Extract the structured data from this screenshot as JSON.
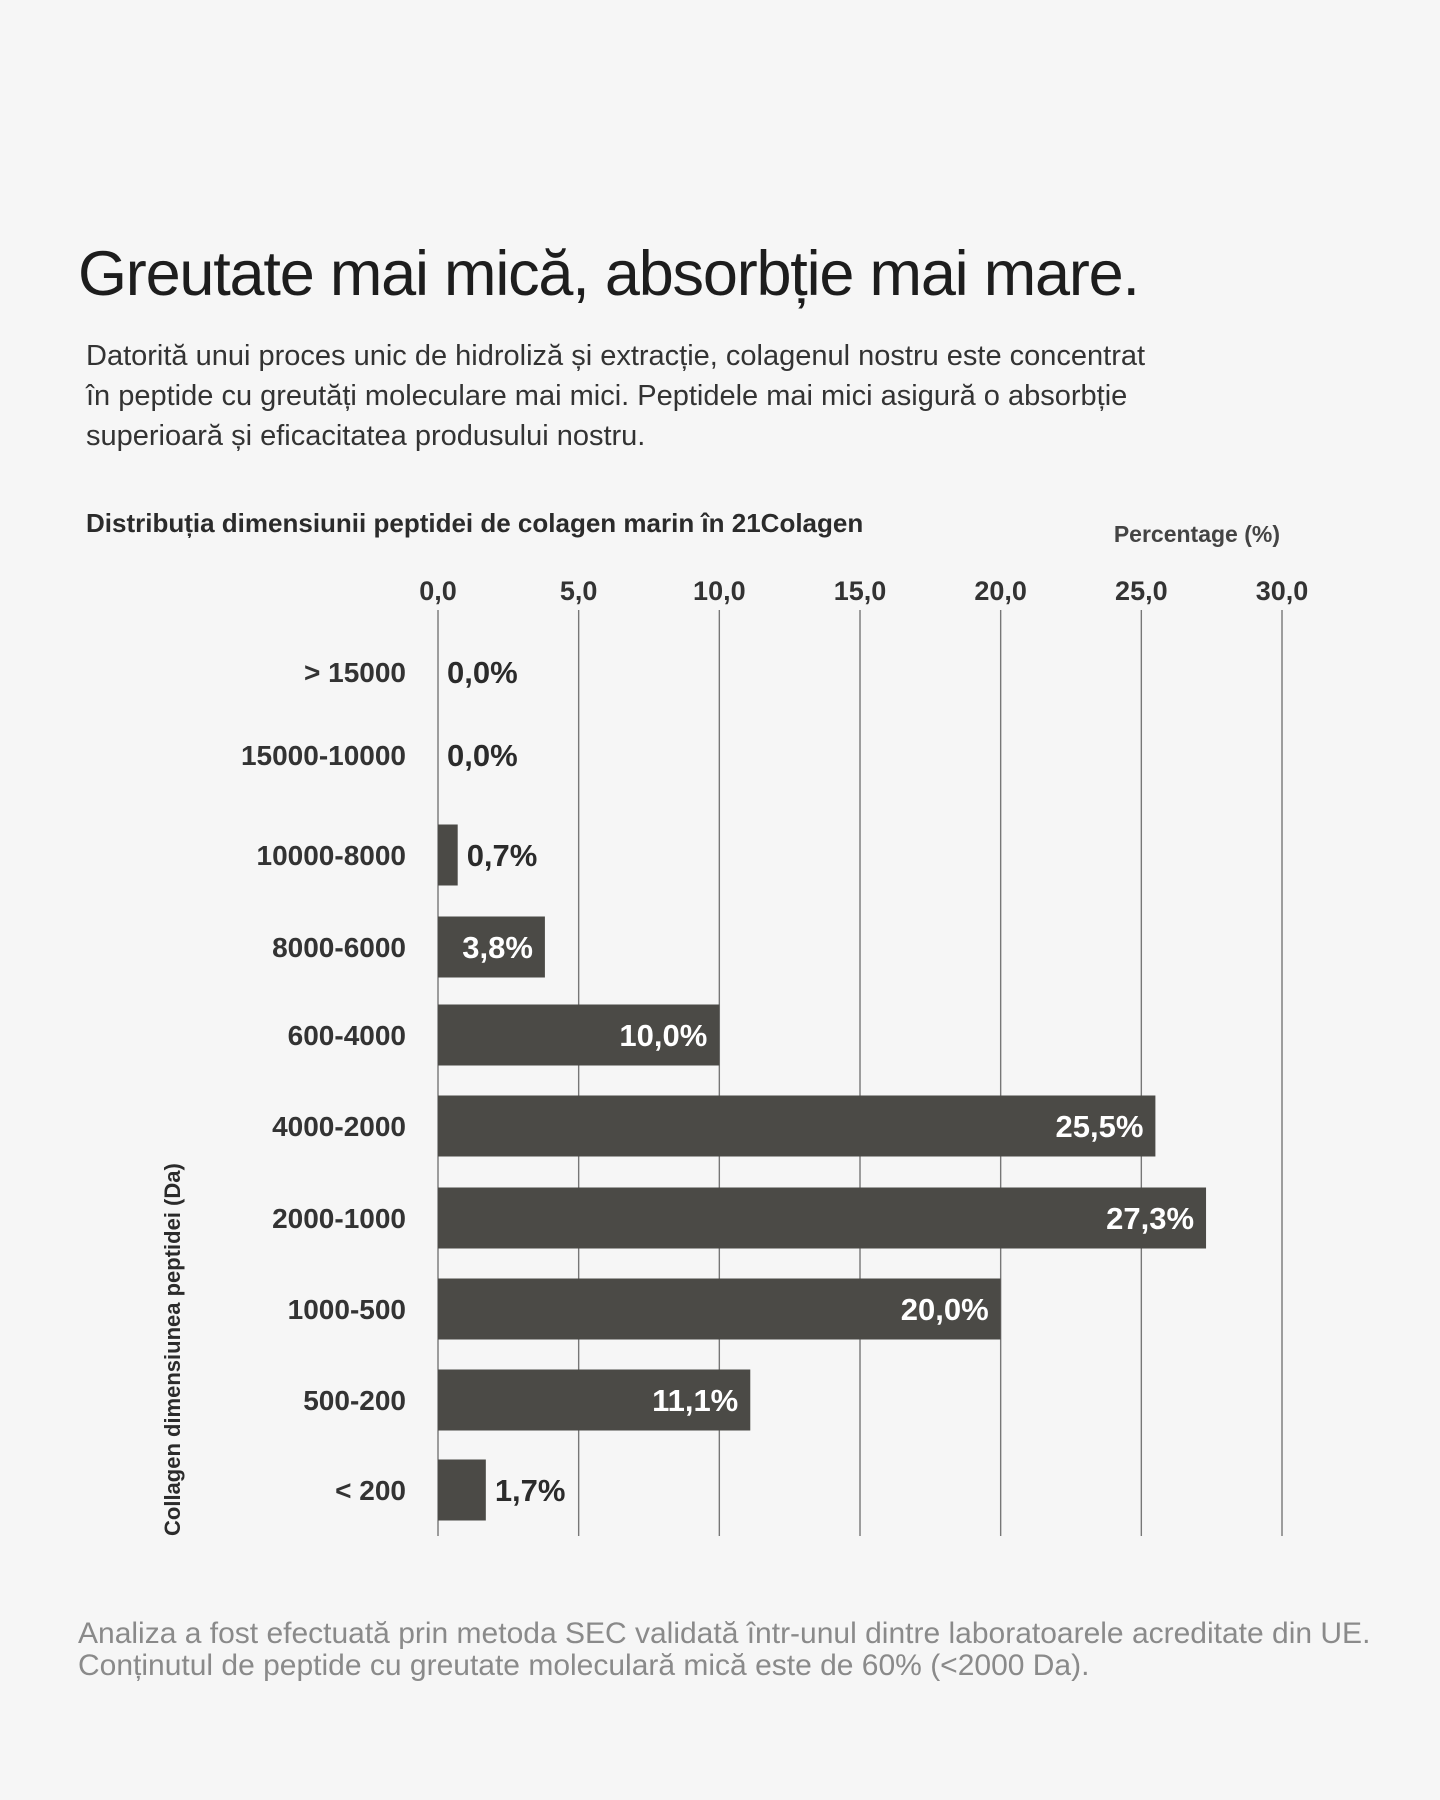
{
  "header": {
    "title": "Greutate mai mică, absorbție mai mare.",
    "description": "Datorită unui proces unic de hidroliză și extracție, colagenul nostru este concentrat în peptide cu greutăți moleculare mai mici. Peptidele mai mici asigură o absorbție superioară și eficacitatea produsului nostru."
  },
  "chart_data": {
    "type": "bar",
    "orientation": "horizontal",
    "title": "Distribuția dimensiunii peptidei de colagen marin în 21Colagen",
    "xlabel": "Percentage (%)",
    "ylabel": "Collagen dimensiunea peptidei (Da)",
    "xlim": [
      0,
      30
    ],
    "xticks": [
      "0,0",
      "5,0",
      "10,0",
      "15,0",
      "20,0",
      "25,0",
      "30,0"
    ],
    "grid": true,
    "categories": [
      "> 15000",
      "15000-10000",
      "10000-8000",
      "8000-6000",
      "600-4000",
      "4000-2000",
      "2000-1000",
      "1000-500",
      "500-200",
      "< 200"
    ],
    "values": [
      0.0,
      0.0,
      0.7,
      3.8,
      10.0,
      25.5,
      27.3,
      20.0,
      11.1,
      1.7
    ],
    "value_labels": [
      "0,0%",
      "0,0%",
      "0,7%",
      "3,8%",
      "10,0%",
      "25,5%",
      "27,3%",
      "20,0%",
      "11,1%",
      "1,7%"
    ],
    "bar_color": "#4b4a46",
    "grid_color": "#777777"
  },
  "footer": {
    "note": "Analiza a fost efectuată prin metoda SEC validată într-unul dintre laboratoarele acreditate din UE. Conținutul de peptide cu greutate moleculară mică este de 60% (<2000 Da)."
  }
}
